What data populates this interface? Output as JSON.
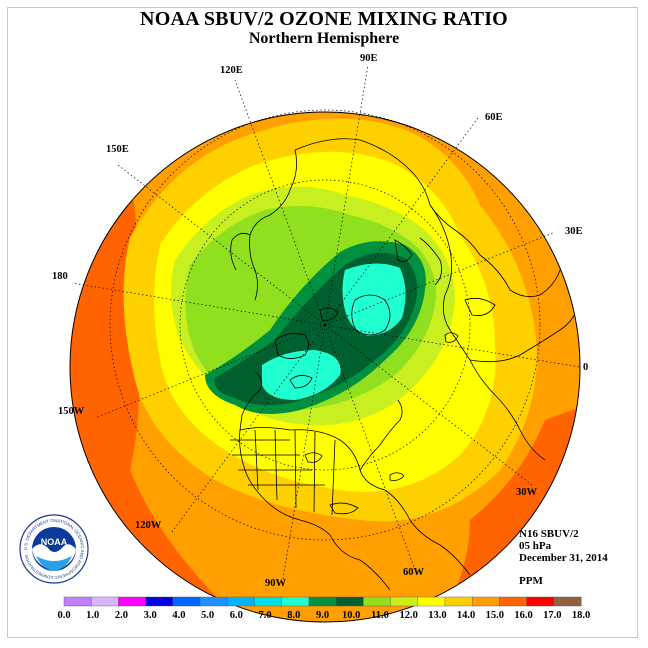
{
  "title": "NOAA SBUV/2 OZONE MIXING RATIO",
  "subtitle": "Northern Hemisphere",
  "instrument": "N16 SBUV/2",
  "pressure": "05 hPa",
  "date": "December 31, 2014",
  "units": "PPM",
  "logo_text": "NOAA",
  "logo_ring_text": "NATIONAL OCEANIC AND ATMOSPHERIC ADMINISTRATION · U.S. DEPARTMENT OF COMMERCE",
  "longitude_labels": [
    "0",
    "30E",
    "60E",
    "90E",
    "120E",
    "150E",
    "180",
    "150W",
    "120W",
    "90W",
    "60W",
    "30W"
  ],
  "colorbar": {
    "ticks": [
      "0.0",
      "1.0",
      "2.0",
      "3.0",
      "4.0",
      "5.0",
      "6.0",
      "7.0",
      "8.0",
      "9.0",
      "10.0",
      "11.0",
      "12.0",
      "13.0",
      "14.0",
      "15.0",
      "16.0",
      "17.0",
      "18.0"
    ],
    "colors": [
      "#c080ff",
      "#dcb4ff",
      "#ff00ff",
      "#0000e0",
      "#0064ff",
      "#1e90ff",
      "#00b4ff",
      "#00e0e8",
      "#20ffd0",
      "#009040",
      "#006030",
      "#90e020",
      "#c8f020",
      "#ffff00",
      "#ffd000",
      "#ffa000",
      "#ff6400",
      "#ff0000",
      "#906040"
    ]
  },
  "map_colors": {
    "orange_outer": "#ffa000",
    "orange_red": "#ff6400",
    "amber": "#ffd000",
    "yellow": "#ffff00",
    "yellow_green": "#c8f020",
    "green": "#90e020",
    "dark_green": "#009040",
    "darker_green": "#006030",
    "cyan": "#20ffd0"
  }
}
